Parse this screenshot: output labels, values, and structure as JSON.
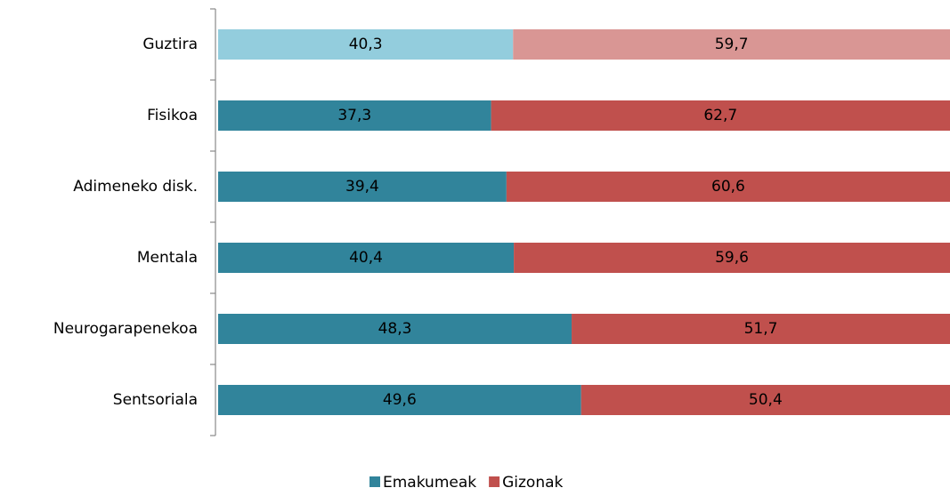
{
  "chart_data": {
    "type": "stacked_barh",
    "categories": [
      "Guztira",
      "Fisikoa",
      "Adimeneko disk.",
      "Mentala",
      "Neurogarapenekoa",
      "Sentsoriala"
    ],
    "series": [
      {
        "name": "Emakumeak",
        "color": "#31849b",
        "colors": [
          "#93cddd",
          "#31849b",
          "#31849b",
          "#31849b",
          "#31849b",
          "#31849b"
        ],
        "values": [
          40.3,
          37.3,
          39.4,
          40.4,
          48.3,
          49.6
        ],
        "value_labels": [
          "40,3",
          "37,3",
          "39,4",
          "40,4",
          "48,3",
          "49,6"
        ]
      },
      {
        "name": "Gizonak",
        "color": "#c0504d",
        "colors": [
          "#d99694",
          "#c0504d",
          "#c0504d",
          "#c0504d",
          "#c0504d",
          "#c0504d"
        ],
        "values": [
          59.7,
          62.7,
          60.6,
          59.6,
          51.7,
          50.4
        ],
        "value_labels": [
          "59,7",
          "62,7",
          "60,6",
          "59,6",
          "51,7",
          "50,4"
        ]
      }
    ],
    "xlim": [
      0,
      100
    ],
    "legend": "bottom"
  }
}
